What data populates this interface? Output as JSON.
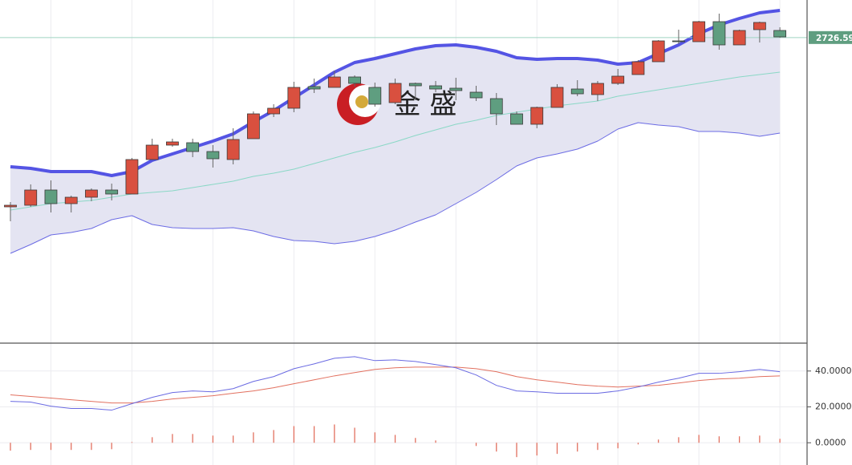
{
  "watermark": "金 盛",
  "chart_data": [
    {
      "type": "candlestick",
      "ylim": [
        2536,
        2750
      ],
      "up_color": "#d9503f",
      "down_color": "#5f9e80",
      "open": [
        2621,
        2622,
        2631.5,
        2623,
        2627,
        2631.5,
        2629,
        2650.5,
        2659.5,
        2661,
        2655.5,
        2650.5,
        2663.5,
        2679,
        2682.5,
        2696,
        2695.5,
        2702,
        2695.5,
        2686,
        2698,
        2696.5,
        2695,
        2692.5,
        2688.5,
        2679,
        2672.5,
        2683,
        2694.5,
        2691,
        2698,
        2703.5,
        2711.5,
        2724.5,
        2724,
        2736.5,
        2722,
        2731.5,
        2731
      ],
      "high": [
        2624,
        2635,
        2637.5,
        2628,
        2632.5,
        2635.5,
        2651.5,
        2663.5,
        2663.5,
        2663.5,
        2659.5,
        2670,
        2680.5,
        2685,
        2699,
        2701,
        2706,
        2703,
        2698.5,
        2701,
        2698.5,
        2699.5,
        2701.5,
        2696.5,
        2692,
        2680.5,
        2683.5,
        2697.5,
        2700,
        2699.5,
        2707,
        2712.5,
        2725,
        2731.5,
        2737,
        2741.5,
        2731.5,
        2736.5,
        2733
      ],
      "low": [
        2612,
        2621,
        2617.5,
        2617.5,
        2624.5,
        2625,
        2629,
        2650.5,
        2658.5,
        2652,
        2645.5,
        2647.5,
        2663.5,
        2677,
        2680,
        2692,
        2695.5,
        2696,
        2683.5,
        2685,
        2687.5,
        2692.5,
        2687.5,
        2687,
        2672,
        2672.5,
        2670,
        2683,
        2690,
        2687,
        2697,
        2703.5,
        2711.5,
        2722.5,
        2724,
        2719,
        2722,
        2723.5,
        2726.5
      ],
      "close": [
        2622,
        2631.5,
        2623,
        2627,
        2631.5,
        2629,
        2650.5,
        2659.5,
        2661.5,
        2655.5,
        2651,
        2663,
        2679,
        2682.5,
        2695.5,
        2694.5,
        2702,
        2698,
        2685,
        2698,
        2696.5,
        2694.5,
        2693.5,
        2689,
        2679,
        2672.5,
        2683,
        2695.5,
        2691.5,
        2698,
        2702.5,
        2711.5,
        2724.5,
        2724,
        2736.5,
        2722,
        2731,
        2736,
        2727
      ],
      "upper": {
        "color": "#5454e4",
        "values": [
          2646,
          2645,
          2643,
          2643,
          2643,
          2640.5,
          2643,
          2650,
          2654,
          2658,
          2662,
          2666.5,
          2674,
          2681,
          2689,
          2697,
          2705,
          2711,
          2713.5,
          2716.5,
          2719.5,
          2721.5,
          2722,
          2720.5,
          2718,
          2714,
          2713,
          2713.5,
          2713.5,
          2712.5,
          2710,
          2711,
          2716.5,
          2722,
          2729,
          2734.5,
          2738.5,
          2742,
          2743.5
        ]
      },
      "middle": {
        "color": "#8ad8c6",
        "values": [
          2619,
          2621,
          2623,
          2624,
          2625,
          2627,
          2629,
          2630,
          2631,
          2633,
          2635,
          2637,
          2640,
          2642,
          2644.5,
          2648,
          2651.5,
          2655,
          2658,
          2661.5,
          2665.5,
          2669,
          2672.5,
          2675,
          2678,
          2680,
          2682,
          2684,
          2685.5,
          2687,
          2690,
          2692,
          2694,
          2696,
          2698,
          2700,
          2702,
          2703.5,
          2705
        ]
      },
      "lower": {
        "color": "#6b6be4",
        "values": [
          2592,
          2597.5,
          2603.5,
          2605,
          2607.5,
          2613,
          2615.5,
          2610,
          2608,
          2607.5,
          2607.5,
          2608,
          2606,
          2602.5,
          2600,
          2599.5,
          2598,
          2599.5,
          2602.5,
          2606.5,
          2611.5,
          2616,
          2623,
          2630,
          2638,
          2646.5,
          2651.5,
          2654,
          2657,
          2662,
          2669.5,
          2673.5,
          2672,
          2671,
          2668,
          2668,
          2667,
          2665,
          2667
        ]
      },
      "band_fill": "#e4e4f2",
      "last_price": 2726.59,
      "last_price_color": "#5f9e80"
    },
    {
      "type": "macd",
      "ylim": [
        -12.4,
        55.1
      ],
      "yticks": [
        {
          "value": 0,
          "label": "0.0000"
        },
        {
          "value": 20,
          "label": "20.0000"
        },
        {
          "value": 40,
          "label": "40.0000"
        }
      ],
      "grid": true,
      "dif": {
        "color": "#6a6ae2",
        "values": [
          23.1,
          22.7,
          20.4,
          19.1,
          19.1,
          18.2,
          21.8,
          25.3,
          28.0,
          28.9,
          28.4,
          30.2,
          34.2,
          36.9,
          41.3,
          44.0,
          47.1,
          48.0,
          45.8,
          46.2,
          45.3,
          43.6,
          41.8,
          37.8,
          32.0,
          28.9,
          28.4,
          27.6,
          27.6,
          27.6,
          28.9,
          31.1,
          33.8,
          36.0,
          38.7,
          38.7,
          39.6,
          40.9,
          39.6
        ]
      },
      "dea": {
        "color": "#e2705f",
        "values": [
          26.7,
          25.8,
          24.9,
          24.0,
          23.1,
          22.2,
          22.2,
          23.1,
          24.4,
          25.3,
          26.2,
          27.6,
          28.9,
          30.7,
          32.9,
          35.1,
          37.3,
          39.1,
          40.9,
          41.8,
          42.2,
          42.2,
          42.2,
          41.3,
          39.6,
          36.9,
          35.1,
          33.8,
          32.4,
          31.6,
          31.1,
          31.6,
          32.0,
          33.3,
          34.7,
          35.6,
          36.0,
          36.9,
          37.3
        ]
      },
      "hist": {
        "color": "#e2705f",
        "values": [
          -4.4,
          -4,
          -4,
          -4,
          -4,
          -3.6,
          0.4,
          3.1,
          4.9,
          4.9,
          4,
          4,
          5.8,
          7.1,
          9.3,
          9.3,
          10.2,
          8.4,
          5.8,
          4.4,
          2.7,
          1.3,
          0,
          -1.8,
          -4.9,
          -8,
          -7.1,
          -6.2,
          -4.9,
          -4,
          -3.1,
          -0.9,
          1.8,
          3.1,
          4.4,
          3.6,
          3.6,
          4,
          2.2
        ]
      }
    }
  ]
}
